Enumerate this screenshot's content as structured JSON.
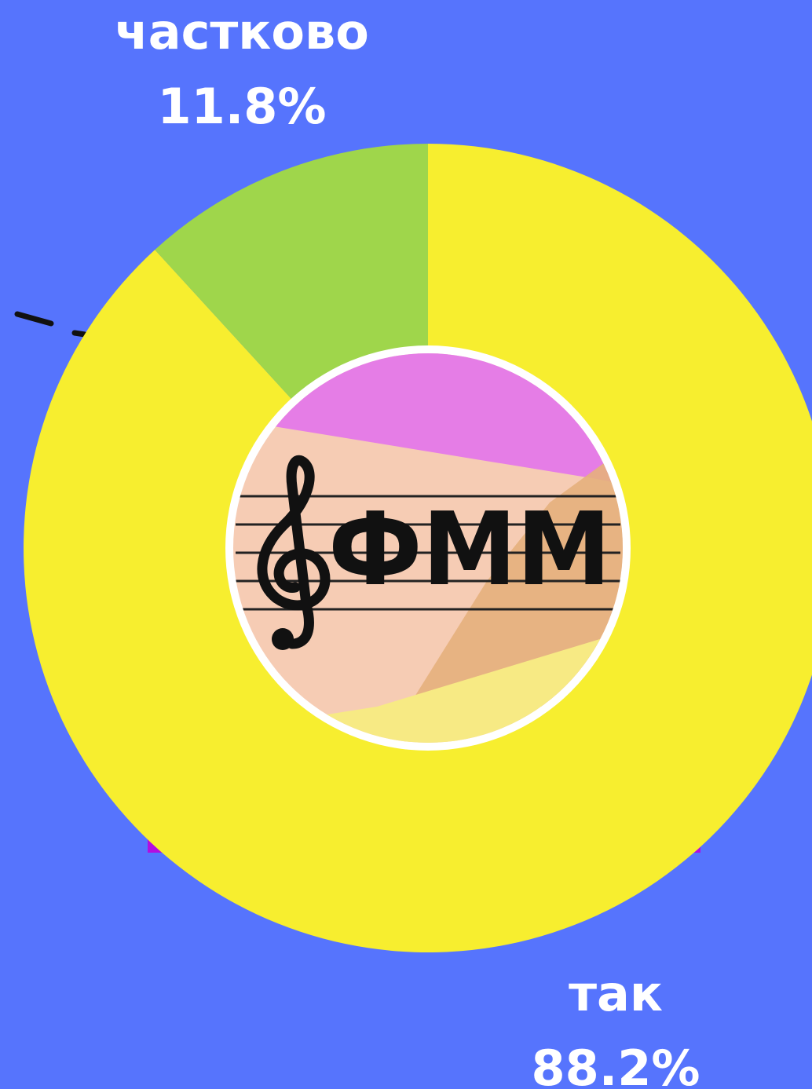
{
  "chart_data": {
    "type": "pie",
    "title": "",
    "slices": [
      {
        "label": "так",
        "value": 88.2,
        "value_label": "88.2%",
        "color": "#f7ee2f"
      },
      {
        "label": "частково",
        "value": 11.8,
        "value_label": "11.8%",
        "color": "#9fd64b"
      }
    ],
    "donut": true,
    "start_angle": "12 o'clock",
    "direction": "clockwise"
  },
  "colors": {
    "background": "#5674fd",
    "hole_border": "#ffffff",
    "accent_bar": "#b20de0",
    "text": "#ffffff"
  },
  "logo": {
    "text": "ФММ",
    "icon": "treble-clef-icon",
    "colors": {
      "base": "#f6ccb4",
      "pink": "#e57de6",
      "orange": "#e5b07c",
      "yellow": "#f7ea84"
    }
  }
}
